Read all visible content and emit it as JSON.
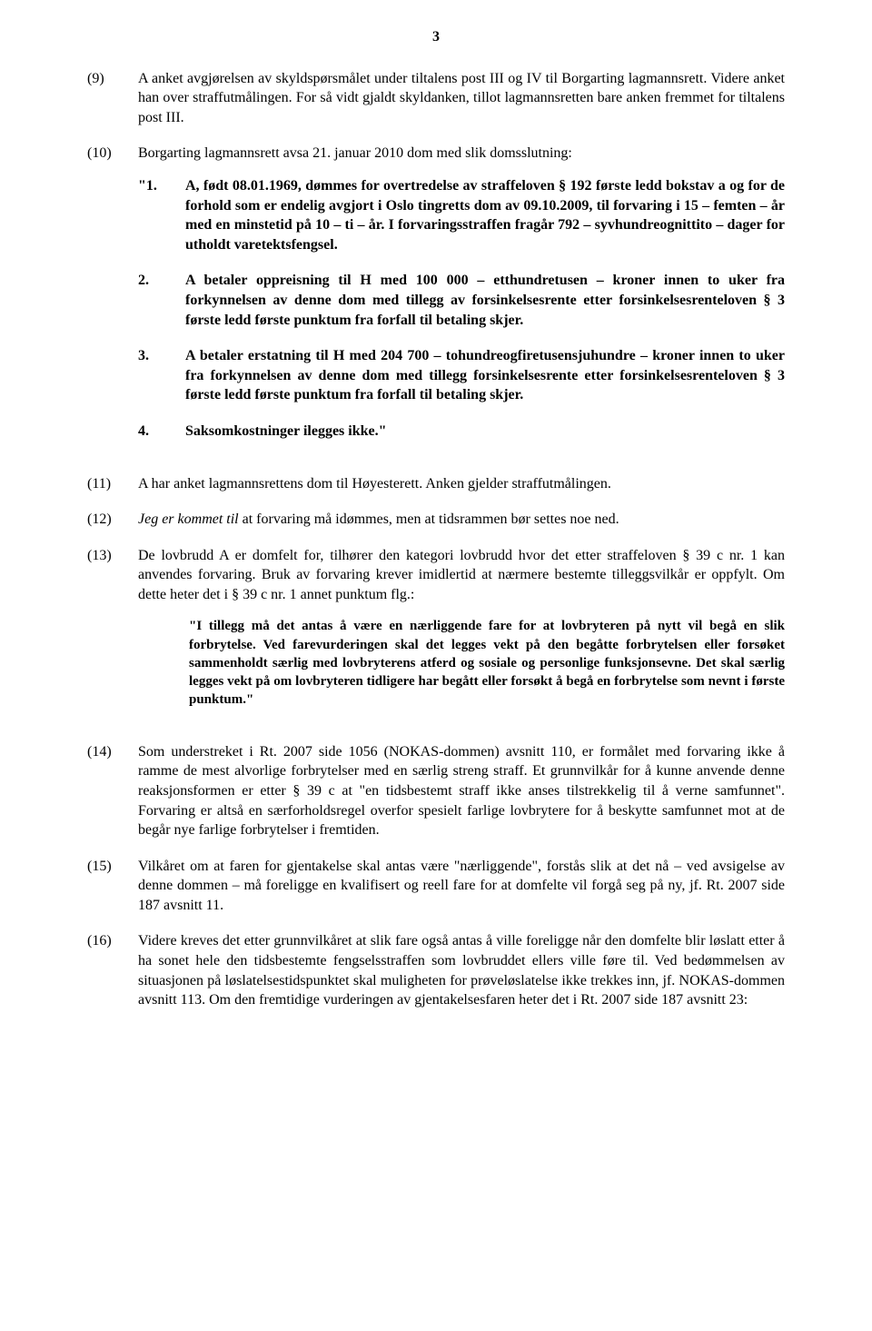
{
  "page_number": "3",
  "paragraphs": {
    "p9": {
      "ref": "(9)",
      "text": "A anket avgjørelsen av skyldspørsmålet under tiltalens post III og IV til Borgarting lagmannsrett. Videre anket han over straffutmålingen. For så vidt gjaldt skyldanken, tillot lagmannsretten bare anken fremmet for tiltalens post III."
    },
    "p10": {
      "ref": "(10)",
      "text": "Borgarting lagmannsrett avsa 21. januar 2010 dom med slik domsslutning:"
    },
    "p11": {
      "ref": "(11)",
      "text": "A har anket lagmannsrettens dom til Høyesterett. Anken gjelder straffutmålingen."
    },
    "p12": {
      "ref": "(12)",
      "italic": "Jeg er kommet til",
      "text": " at forvaring må idømmes, men at tidsrammen bør settes noe ned."
    },
    "p13": {
      "ref": "(13)",
      "text": "De lovbrudd A er domfelt for, tilhører den kategori lovbrudd hvor det etter straffeloven § 39 c nr. 1 kan anvendes forvaring. Bruk av forvaring krever imidlertid at nærmere bestemte tilleggsvilkår er oppfylt. Om dette heter det i § 39 c nr. 1 annet punktum flg.:"
    },
    "p14": {
      "ref": "(14)",
      "text": "Som understreket i Rt. 2007 side 1056 (NOKAS-dommen) avsnitt 110, er formålet med forvaring ikke å ramme de mest alvorlige forbrytelser med en særlig streng straff. Et grunnvilkår for å kunne anvende denne reaksjonsformen er etter § 39 c at \"en tidsbestemt straff ikke anses tilstrekkelig til å verne samfunnet\". Forvaring er altså en særforholdsregel overfor spesielt farlige lovbrytere for å beskytte samfunnet mot at de begår nye farlige forbrytelser i fremtiden."
    },
    "p15": {
      "ref": "(15)",
      "text": "Vilkåret om at faren for gjentakelse skal antas være \"nærliggende\", forstås slik at det nå – ved avsigelse av denne dommen – må foreligge en kvalifisert og reell fare for at domfelte vil forgå seg på ny, jf. Rt. 2007 side 187 avsnitt 11."
    },
    "p16": {
      "ref": "(16)",
      "text": "Videre kreves det etter grunnvilkåret at slik fare også antas å ville foreligge når den domfelte blir løslatt etter å ha sonet hele den tidsbestemte fengselsstraffen som lovbruddet ellers ville føre til. Ved bedømmelsen av situasjonen på løslatelsestidspunktet skal muligheten for prøveløslatelse ikke trekkes inn, jf. NOKAS-dommen avsnitt 113. Om den fremtidige vurderingen av gjentakelsesfaren heter det i Rt. 2007 side 187 avsnitt 23:"
    }
  },
  "numbered": {
    "n1": {
      "ref": "\"1.",
      "text": "A, født 08.01.1969, dømmes for overtredelse av straffeloven § 192 første ledd bokstav a og for de forhold som er endelig avgjort i Oslo tingretts dom av 09.10.2009, til forvaring i 15 – femten – år med en minstetid på 10 – ti – år. I forvaringsstraffen fragår 792 – syvhundreognittito – dager for utholdt varetektsfengsel."
    },
    "n2": {
      "ref": "2.",
      "text": "A betaler oppreisning til H med 100 000 – etthundretusen – kroner innen to uker fra forkynnelsen av denne dom med tillegg av forsinkelsesrente etter forsinkelsesrenteloven § 3 første ledd første punktum fra forfall til betaling skjer."
    },
    "n3": {
      "ref": "3.",
      "text": "A betaler erstatning til H med 204 700 – tohundreogfiretusensjuhundre – kroner innen to uker fra forkynnelsen av denne dom med tillegg forsinkelsesrente etter forsinkelsesrenteloven § 3 første ledd første punktum fra forfall til betaling skjer."
    },
    "n4": {
      "ref": "4.",
      "text": "Saksomkostninger ilegges ikke.\""
    }
  },
  "quote13": "\"I tillegg må det antas å være en nærliggende fare for at lovbryteren på nytt vil begå en slik forbrytelse. Ved farevurderingen skal det legges vekt på den begåtte forbrytelsen eller forsøket sammenholdt særlig med lovbryterens atferd og sosiale og personlige funksjonsevne. Det skal særlig legges vekt på om lovbryteren tidligere har begått eller forsøkt å begå en forbrytelse som nevnt i første punktum.\""
}
